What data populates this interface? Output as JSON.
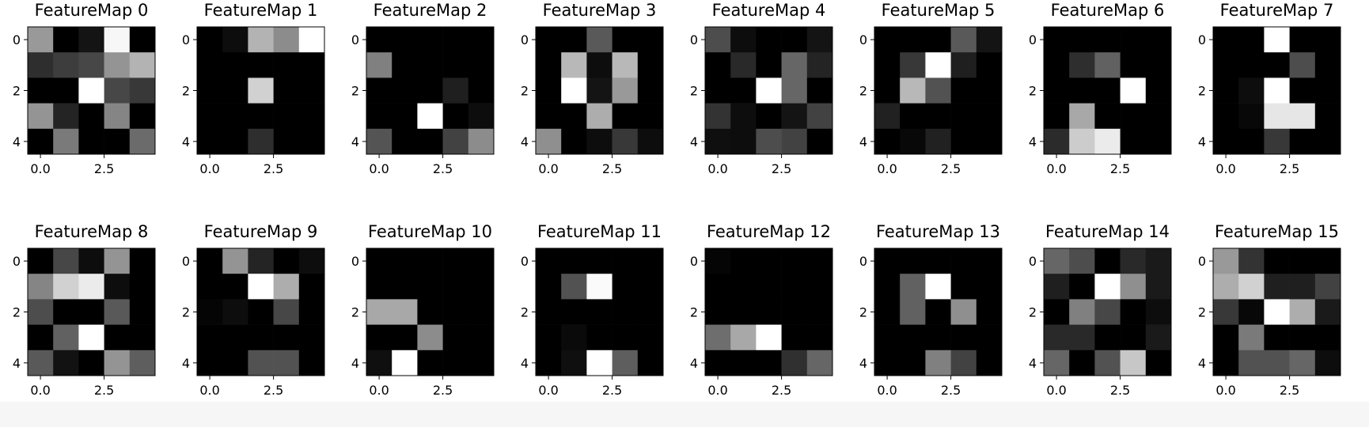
{
  "chart_data": {
    "type": "heatmap",
    "colormap": "gray",
    "grid": false,
    "xticks": [
      "0.0",
      "2.5"
    ],
    "yticks": [
      "0",
      "2",
      "4"
    ],
    "layout": {
      "rows": 2,
      "cols": 8
    },
    "charts": [
      {
        "title": "FeatureMap 0",
        "values": [
          [
            0.6,
            0.0,
            0.08,
            0.97,
            0.0
          ],
          [
            0.18,
            0.24,
            0.28,
            0.58,
            0.7
          ],
          [
            0.0,
            0.0,
            1.0,
            0.28,
            0.22
          ],
          [
            0.58,
            0.14,
            0.0,
            0.52,
            0.0
          ],
          [
            0.0,
            0.48,
            0.0,
            0.0,
            0.42
          ]
        ]
      },
      {
        "title": "FeatureMap 1",
        "values": [
          [
            0.0,
            0.05,
            0.7,
            0.55,
            1.0
          ],
          [
            0.0,
            0.0,
            0.0,
            0.0,
            0.0
          ],
          [
            0.0,
            0.0,
            0.82,
            0.0,
            0.0
          ],
          [
            0.0,
            0.0,
            0.0,
            0.0,
            0.0
          ],
          [
            0.0,
            0.0,
            0.18,
            0.0,
            0.0
          ]
        ]
      },
      {
        "title": "FeatureMap 2",
        "values": [
          [
            0.0,
            0.0,
            0.0,
            0.0,
            0.0
          ],
          [
            0.5,
            0.0,
            0.0,
            0.0,
            0.0
          ],
          [
            0.0,
            0.0,
            0.0,
            0.12,
            0.0
          ],
          [
            0.0,
            0.0,
            1.0,
            0.0,
            0.05
          ],
          [
            0.33,
            0.0,
            0.0,
            0.26,
            0.55
          ]
        ]
      },
      {
        "title": "FeatureMap 3",
        "values": [
          [
            0.0,
            0.0,
            0.35,
            0.0,
            0.0
          ],
          [
            0.0,
            0.72,
            0.05,
            0.72,
            0.0
          ],
          [
            0.0,
            1.0,
            0.08,
            0.6,
            0.0
          ],
          [
            0.0,
            0.0,
            0.68,
            0.0,
            0.0
          ],
          [
            0.56,
            0.0,
            0.05,
            0.22,
            0.05
          ]
        ]
      },
      {
        "title": "FeatureMap 4",
        "values": [
          [
            0.3,
            0.05,
            0.0,
            0.0,
            0.08
          ],
          [
            0.0,
            0.16,
            0.0,
            0.4,
            0.14
          ],
          [
            0.0,
            0.0,
            1.0,
            0.4,
            0.0
          ],
          [
            0.2,
            0.05,
            0.0,
            0.08,
            0.26
          ],
          [
            0.06,
            0.05,
            0.3,
            0.26,
            0.0
          ]
        ]
      },
      {
        "title": "FeatureMap 5",
        "values": [
          [
            0.0,
            0.0,
            0.0,
            0.35,
            0.08
          ],
          [
            0.0,
            0.22,
            1.0,
            0.12,
            0.0
          ],
          [
            0.0,
            0.72,
            0.32,
            0.0,
            0.0
          ],
          [
            0.13,
            0.0,
            0.0,
            0.0,
            0.0
          ],
          [
            0.0,
            0.03,
            0.13,
            0.0,
            0.0
          ]
        ]
      },
      {
        "title": "FeatureMap 6",
        "values": [
          [
            0.0,
            0.0,
            0.0,
            0.0,
            0.0
          ],
          [
            0.0,
            0.18,
            0.38,
            0.0,
            0.0
          ],
          [
            0.0,
            0.0,
            0.0,
            1.0,
            0.0
          ],
          [
            0.0,
            0.66,
            0.0,
            0.0,
            0.0
          ],
          [
            0.17,
            0.8,
            0.92,
            0.0,
            0.0
          ]
        ]
      },
      {
        "title": "FeatureMap 7",
        "values": [
          [
            0.0,
            0.0,
            1.0,
            0.0,
            0.0
          ],
          [
            0.0,
            0.0,
            0.0,
            0.3,
            0.0
          ],
          [
            0.0,
            0.05,
            1.0,
            0.0,
            0.0
          ],
          [
            0.0,
            0.03,
            0.9,
            0.9,
            0.0
          ],
          [
            0.0,
            0.0,
            0.22,
            0.0,
            0.0
          ]
        ]
      },
      {
        "title": "FeatureMap 8",
        "values": [
          [
            0.0,
            0.28,
            0.05,
            0.58,
            0.0
          ],
          [
            0.52,
            0.82,
            0.92,
            0.05,
            0.0
          ],
          [
            0.3,
            0.0,
            0.0,
            0.35,
            0.0
          ],
          [
            0.0,
            0.38,
            1.0,
            0.0,
            0.0
          ],
          [
            0.35,
            0.07,
            0.0,
            0.58,
            0.37
          ]
        ]
      },
      {
        "title": "FeatureMap 9",
        "values": [
          [
            0.0,
            0.58,
            0.14,
            0.0,
            0.05
          ],
          [
            0.0,
            0.0,
            1.0,
            0.68,
            0.0
          ],
          [
            0.02,
            0.05,
            0.0,
            0.28,
            0.0
          ],
          [
            0.0,
            0.0,
            0.0,
            0.0,
            0.0
          ],
          [
            0.0,
            0.0,
            0.32,
            0.32,
            0.0
          ]
        ]
      },
      {
        "title": "FeatureMap 10",
        "values": [
          [
            0.0,
            0.0,
            0.0,
            0.0,
            0.0
          ],
          [
            0.0,
            0.0,
            0.0,
            0.0,
            0.0
          ],
          [
            0.66,
            0.66,
            0.0,
            0.0,
            0.0
          ],
          [
            0.0,
            0.0,
            0.55,
            0.0,
            0.0
          ],
          [
            0.06,
            1.0,
            0.0,
            0.0,
            0.0
          ]
        ]
      },
      {
        "title": "FeatureMap 11",
        "values": [
          [
            0.0,
            0.0,
            0.0,
            0.0,
            0.0
          ],
          [
            0.0,
            0.32,
            0.98,
            0.0,
            0.0
          ],
          [
            0.0,
            0.0,
            0.0,
            0.0,
            0.0
          ],
          [
            0.0,
            0.04,
            0.0,
            0.0,
            0.0
          ],
          [
            0.0,
            0.06,
            1.0,
            0.37,
            0.0
          ]
        ]
      },
      {
        "title": "FeatureMap 12",
        "values": [
          [
            0.02,
            0.0,
            0.0,
            0.0,
            0.0
          ],
          [
            0.0,
            0.0,
            0.0,
            0.0,
            0.0
          ],
          [
            0.0,
            0.0,
            0.0,
            0.0,
            0.0
          ],
          [
            0.43,
            0.66,
            1.0,
            0.0,
            0.0
          ],
          [
            0.0,
            0.0,
            0.0,
            0.19,
            0.4
          ]
        ]
      },
      {
        "title": "FeatureMap 13",
        "values": [
          [
            0.0,
            0.0,
            0.0,
            0.0,
            0.0
          ],
          [
            0.0,
            0.38,
            1.0,
            0.0,
            0.0
          ],
          [
            0.0,
            0.38,
            0.0,
            0.56,
            0.0
          ],
          [
            0.0,
            0.0,
            0.0,
            0.0,
            0.0
          ],
          [
            0.0,
            0.0,
            0.5,
            0.26,
            0.0
          ]
        ]
      },
      {
        "title": "FeatureMap 14",
        "values": [
          [
            0.4,
            0.3,
            0.0,
            0.16,
            0.1
          ],
          [
            0.12,
            0.0,
            1.0,
            0.56,
            0.1
          ],
          [
            0.0,
            0.5,
            0.28,
            0.0,
            0.05
          ],
          [
            0.16,
            0.16,
            0.0,
            0.0,
            0.1
          ],
          [
            0.4,
            0.0,
            0.32,
            0.78,
            0.0
          ]
        ]
      },
      {
        "title": "FeatureMap 15",
        "values": [
          [
            0.6,
            0.2,
            0.0,
            0.0,
            0.0
          ],
          [
            0.68,
            0.82,
            0.12,
            0.12,
            0.26
          ],
          [
            0.22,
            0.03,
            1.0,
            0.68,
            0.1
          ],
          [
            0.0,
            0.48,
            0.0,
            0.0,
            0.0
          ],
          [
            0.0,
            0.32,
            0.32,
            0.4,
            0.05
          ]
        ]
      }
    ]
  }
}
